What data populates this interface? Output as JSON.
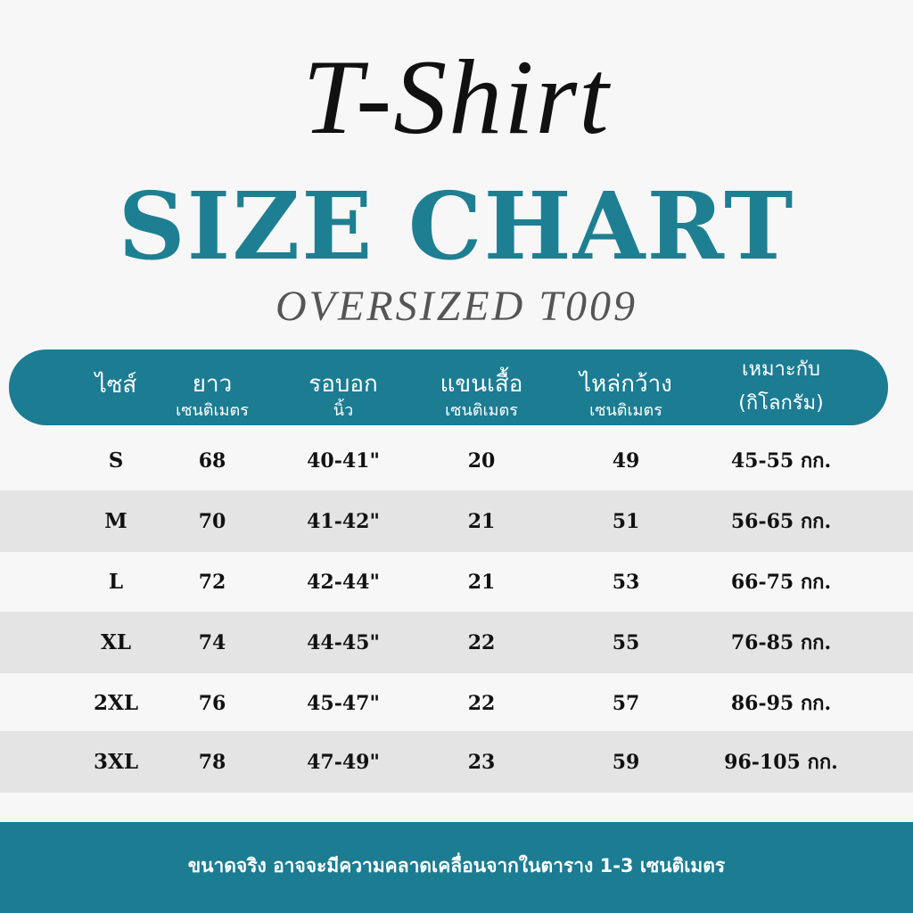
{
  "script_title": "T-Shirt",
  "title": "SIZE CHART",
  "subtitle": "OVERSIZED T009",
  "table": {
    "headers": [
      {
        "main": "ไซส์"
      },
      {
        "main": "ยาว",
        "sub": "เซนติเมตร"
      },
      {
        "main": "รอบอก",
        "sub": "นิ้ว"
      },
      {
        "main": "แขนเสื้อ",
        "sub": "เซนติเมตร"
      },
      {
        "main": "ไหล่กว้าง",
        "sub": "เซนติเมตร"
      },
      {
        "main": "เหมาะกับ",
        "sub": "(กิโลกรัม)"
      }
    ],
    "rows": [
      [
        "S",
        "68",
        "40-41\"",
        "20",
        "49",
        "45-55 กก."
      ],
      [
        "M",
        "70",
        "41-42\"",
        "21",
        "51",
        "56-65 กก."
      ],
      [
        "L",
        "72",
        "42-44\"",
        "21",
        "53",
        "66-75 กก."
      ],
      [
        "XL",
        "74",
        "44-45\"",
        "22",
        "55",
        "76-85 กก."
      ],
      [
        "2XL",
        "76",
        "45-47\"",
        "22",
        "57",
        "86-95 กก."
      ],
      [
        "3XL",
        "78",
        "47-49\"",
        "23",
        "59",
        "96-105 กก."
      ]
    ]
  },
  "footer": "ขนาดจริง อาจจะมีความคลาดเคลื่อนจากในตาราง 1-3 เซนติเมตร"
}
